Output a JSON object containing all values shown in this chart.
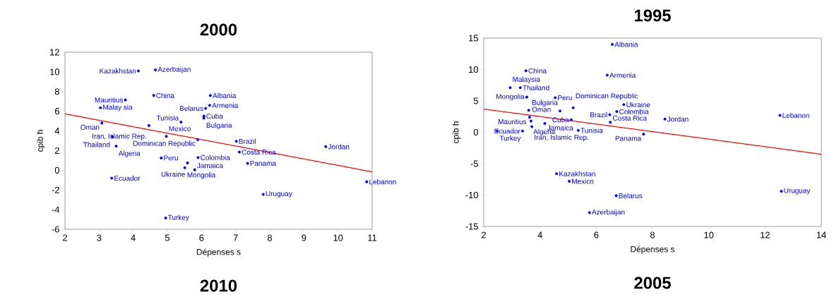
{
  "chart_data": [
    {
      "type": "scatter",
      "title": "2000",
      "subtitle": "2010",
      "xlabel": "Dépenses s",
      "ylabel": "cpib h",
      "xlim": [
        2,
        11
      ],
      "ylim": [
        -6,
        12
      ],
      "xticks": [
        2,
        3,
        4,
        5,
        6,
        7,
        8,
        9,
        10,
        11
      ],
      "yticks": [
        -6,
        -4,
        -2,
        0,
        2,
        4,
        6,
        8,
        10,
        12
      ],
      "series": [
        {
          "marker": "circle",
          "color": "#0000ff",
          "x": [
            4.15,
            4.65,
            4.6,
            3.77,
            3.04,
            6.26,
            6.24,
            6.12,
            6.07,
            6.07,
            5.4,
            3.08,
            4.46,
            3.39,
            4.97,
            5.89,
            3.5,
            4.82,
            5.9,
            5.59,
            5.51,
            5.8,
            3.37,
            4.95,
            7.02,
            7.11,
            7.35,
            9.64,
            10.84,
            7.81
          ],
          "values": [
            10.1,
            10.2,
            7.6,
            7.15,
            6.35,
            7.6,
            6.6,
            6.3,
            5.5,
            5.3,
            4.9,
            4.8,
            4.55,
            3.4,
            3.45,
            3.1,
            2.45,
            1.25,
            1.3,
            0.75,
            0.25,
            0.05,
            -0.8,
            -4.85,
            2.95,
            1.85,
            0.7,
            2.4,
            -1.17,
            -2.45
          ]
        },
        {
          "type": "line",
          "color": "#ff0000",
          "x": [
            2,
            11
          ],
          "values": [
            5.74,
            -0.17
          ]
        }
      ],
      "annotations": [
        {
          "text": "Kazakhstan",
          "x": 4.15,
          "y": 10.1
        },
        {
          "text": "Azerbaijan",
          "x": 4.65,
          "y": 10.2
        },
        {
          "text": "China",
          "x": 4.6,
          "y": 7.6
        },
        {
          "text": "Mauritius",
          "x": 3.77,
          "y": 7.15
        },
        {
          "text": "Malay sia",
          "x": 3.04,
          "y": 6.35
        },
        {
          "text": "Albania",
          "x": 6.26,
          "y": 7.6
        },
        {
          "text": "Armenia",
          "x": 6.24,
          "y": 6.6
        },
        {
          "text": "Belarus",
          "x": 6.12,
          "y": 6.3
        },
        {
          "text": "Cuba",
          "x": 6.07,
          "y": 5.5
        },
        {
          "text": "Bulgaria",
          "x": 6.07,
          "y": 5.3
        },
        {
          "text": "Tunisia",
          "x": 5.4,
          "y": 4.9
        },
        {
          "text": "Oman",
          "x": 3.08,
          "y": 4.8
        },
        {
          "text": "Iran, Islamic Rep.",
          "x": 4.46,
          "y": 4.55
        },
        {
          "text": "Thailand",
          "x": 3.39,
          "y": 3.4
        },
        {
          "text": "Mexico",
          "x": 4.97,
          "y": 3.45
        },
        {
          "text": "Dominican Republic",
          "x": 5.89,
          "y": 3.1
        },
        {
          "text": "Algeria",
          "x": 3.5,
          "y": 2.45
        },
        {
          "text": "Peru",
          "x": 4.82,
          "y": 1.25
        },
        {
          "text": "Colombia",
          "x": 5.9,
          "y": 1.3
        },
        {
          "text": "Ukraine",
          "x": 5.59,
          "y": 0.75
        },
        {
          "text": "Mongolia",
          "x": 5.51,
          "y": 0.25
        },
        {
          "text": "Jamaica",
          "x": 5.8,
          "y": 0.05
        },
        {
          "text": "Ecuador",
          "x": 3.37,
          "y": -0.8
        },
        {
          "text": "Turkey",
          "x": 4.95,
          "y": -4.85
        },
        {
          "text": "Brazil",
          "x": 7.02,
          "y": 2.95
        },
        {
          "text": "Costa Rica",
          "x": 7.11,
          "y": 1.85
        },
        {
          "text": "Panama",
          "x": 7.35,
          "y": 0.7
        },
        {
          "text": "Jordan",
          "x": 9.64,
          "y": 2.4
        },
        {
          "text": "Lebanon",
          "x": 10.84,
          "y": -1.17
        },
        {
          "text": "Uruguay",
          "x": 7.81,
          "y": -2.45
        }
      ]
    },
    {
      "type": "scatter",
      "title": "1995",
      "subtitle": "2005",
      "xlabel": "Dépenses s",
      "ylabel": "cpib h",
      "xlim": [
        2,
        14
      ],
      "ylim": [
        -15,
        15
      ],
      "xticks": [
        2,
        4,
        6,
        8,
        10,
        12,
        14
      ],
      "yticks": [
        -15,
        -10,
        -5,
        0,
        5,
        10,
        15
      ],
      "series": [
        {
          "marker": "circle",
          "color": "#0000ff",
          "x": [
            6.57,
            3.5,
            6.39,
            2.94,
            3.3,
            3.53,
            4.54,
            6.98,
            5.18,
            3.6,
            4.71,
            6.73,
            6.48,
            3.63,
            3.68,
            5.11,
            4.17,
            6.5,
            3.71,
            2.48,
            3.38,
            5.36,
            8.44,
            7.68,
            12.53,
            12.58,
            4.59,
            5.04,
            6.71,
            5.76
          ],
          "values": [
            14.0,
            9.8,
            9.1,
            7.1,
            7.1,
            5.6,
            5.5,
            4.4,
            3.9,
            3.5,
            3.4,
            3.3,
            2.8,
            2.4,
            1.8,
            2.0,
            1.4,
            1.6,
            0.9,
            0.2,
            0.2,
            0.3,
            2.1,
            -0.3,
            2.7,
            -9.4,
            -6.6,
            -7.8,
            -10.1,
            -12.8
          ]
        },
        {
          "type": "line",
          "color": "#ff0000",
          "x": [
            2,
            14
          ],
          "values": [
            3.7,
            -3.5
          ]
        }
      ],
      "annotations": [
        {
          "text": "Albania",
          "x": 6.57,
          "y": 14.0
        },
        {
          "text": "China",
          "x": 3.5,
          "y": 9.8
        },
        {
          "text": "Armenia",
          "x": 6.39,
          "y": 9.1
        },
        {
          "text": "Malaysia",
          "x": 2.94,
          "y": 7.1
        },
        {
          "text": "Thailand",
          "x": 3.3,
          "y": 7.1
        },
        {
          "text": "Mongolia",
          "x": 3.53,
          "y": 5.6
        },
        {
          "text": "Peru",
          "x": 4.54,
          "y": 5.5
        },
        {
          "text": "Ukraine",
          "x": 6.98,
          "y": 4.4
        },
        {
          "text": "Dominican Republic",
          "x": 5.18,
          "y": 3.9
        },
        {
          "text": "Mauritius",
          "x": 3.6,
          "y": 3.5
        },
        {
          "text": "Bulgaria",
          "x": 4.71,
          "y": 3.4
        },
        {
          "text": "Colombia",
          "x": 6.73,
          "y": 3.3
        },
        {
          "text": "Brazil",
          "x": 6.48,
          "y": 2.8
        },
        {
          "text": "Oman",
          "x": 3.63,
          "y": 2.4
        },
        {
          "text": "Algeria",
          "x": 3.68,
          "y": 1.8
        },
        {
          "text": "Cuba",
          "x": 5.11,
          "y": 2.0
        },
        {
          "text": "Jamaica",
          "x": 4.17,
          "y": 1.4
        },
        {
          "text": "Costa Rica",
          "x": 6.5,
          "y": 1.6
        },
        {
          "text": "Iran, Islamic Rep.",
          "x": 3.71,
          "y": 0.9
        },
        {
          "text": "Turkey",
          "x": 2.48,
          "y": 0.2
        },
        {
          "text": "Ecuador",
          "x": 3.38,
          "y": 0.2
        },
        {
          "text": "Tunisia",
          "x": 5.36,
          "y": 0.3
        },
        {
          "text": "Jordan",
          "x": 8.44,
          "y": 2.1
        },
        {
          "text": "Panama",
          "x": 7.68,
          "y": -0.3
        },
        {
          "text": "Lebanon",
          "x": 12.53,
          "y": 2.7
        },
        {
          "text": "Uruguay",
          "x": 12.58,
          "y": -9.4
        },
        {
          "text": "Kazakhstan",
          "x": 4.59,
          "y": -6.6
        },
        {
          "text": "Mexico",
          "x": 5.04,
          "y": -7.8
        },
        {
          "text": "Belarus",
          "x": 6.71,
          "y": -10.1
        },
        {
          "text": "Azerbaijan",
          "x": 5.76,
          "y": -12.8
        }
      ]
    }
  ]
}
